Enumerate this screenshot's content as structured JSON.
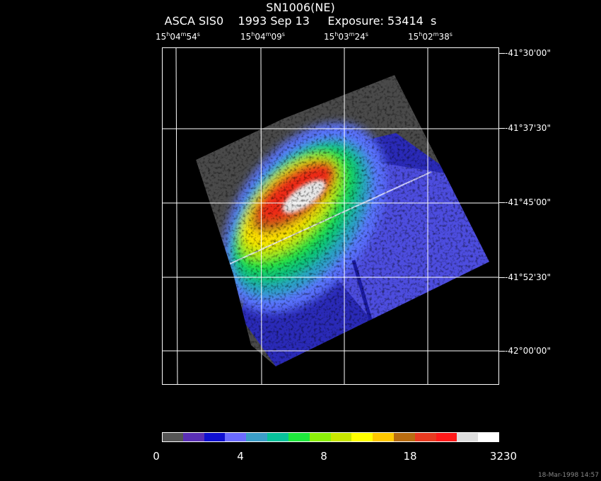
{
  "title": "SN1006(NE)",
  "subtitle": "ASCA SIS0    1993 Sep 13     Exposure: 53414  s",
  "ra_labels": [
    {
      "h": "15",
      "m": "04",
      "s": "54"
    },
    {
      "h": "15",
      "m": "04",
      "s": "09"
    },
    {
      "h": "15",
      "m": "03",
      "s": "24"
    },
    {
      "h": "15",
      "m": "02",
      "s": "38"
    }
  ],
  "dec_labels": [
    "-41°30'00\"",
    "-41°37'30\"",
    "-41°45'00\"",
    "-41°52'30\"",
    "-42°00'00\""
  ],
  "colorbar": {
    "colors": [
      "#555555",
      "#5a2fb5",
      "#1010d0",
      "#6b6bff",
      "#3b9dc8",
      "#08c29b",
      "#1ee83c",
      "#8cf00a",
      "#c8e600",
      "#ffff00",
      "#ffc800",
      "#b86c10",
      "#e83a20",
      "#ff1a1a",
      "#dddddd",
      "#ffffff"
    ],
    "tick_labels": [
      "0",
      "4",
      "8",
      "18",
      "3230"
    ]
  },
  "timestamp": "18-Mar-1998 14:57"
}
